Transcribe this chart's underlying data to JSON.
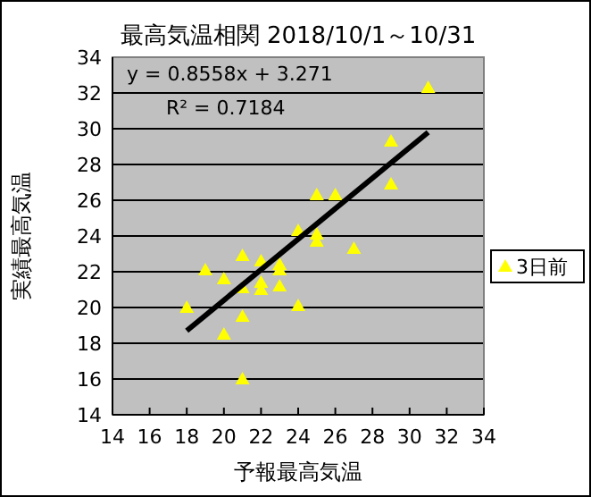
{
  "chart_data": {
    "type": "scatter",
    "title": "最高気温相関 2018/10/1～10/31",
    "xlabel": "予報最高気温",
    "ylabel": "実績最高気温",
    "xlim": [
      14,
      34
    ],
    "ylim": [
      14,
      34
    ],
    "xticks": [
      14,
      16,
      18,
      20,
      22,
      24,
      26,
      28,
      30,
      32,
      34
    ],
    "yticks": [
      14,
      16,
      18,
      20,
      22,
      24,
      26,
      28,
      30,
      32,
      34
    ],
    "grid": "y",
    "legend": "right",
    "marker": "triangle",
    "annotations": [
      "y = 0.8558x + 3.271",
      "R² = 0.7184"
    ],
    "series": [
      {
        "name": "3日前",
        "color": "#ffff00",
        "x": [
          18,
          19,
          20,
          20,
          21,
          21,
          21,
          21,
          22,
          22,
          22,
          23,
          23,
          23,
          24,
          24,
          25,
          25,
          25,
          26,
          27,
          29,
          29,
          31
        ],
        "values": [
          20,
          22.1,
          21.6,
          18.5,
          22.9,
          21.1,
          19.5,
          16,
          22.6,
          21.4,
          21,
          22.4,
          22.1,
          21.2,
          24.3,
          20.1,
          26.3,
          24.1,
          23.7,
          26.3,
          23.3,
          29.3,
          26.9,
          32.3
        ]
      },
      {
        "type": "line",
        "marker": "none",
        "color": "#000000",
        "x": [
          18,
          31
        ],
        "values": [
          18.7,
          29.8
        ]
      }
    ]
  }
}
